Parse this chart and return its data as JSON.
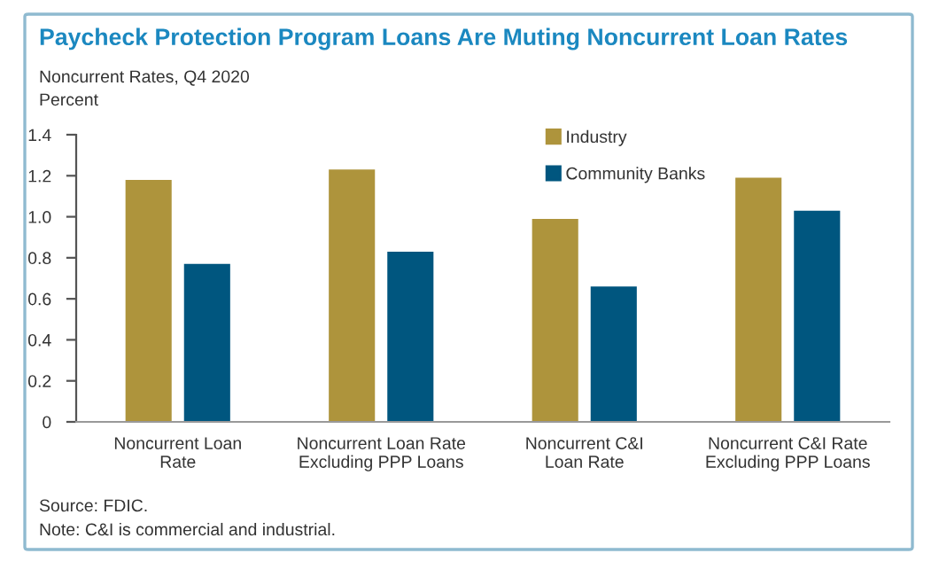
{
  "chart_data": {
    "type": "bar",
    "title": "Paycheck Protection Program Loans Are Muting Noncurrent Loan Rates",
    "subtitle": "Noncurrent Rates, Q4 2020",
    "ylabel": "Percent",
    "categories": [
      "Noncurrent Loan\nRate",
      "Noncurrent Loan Rate\nExcluding PPP Loans",
      "Noncurrent C&I\nLoan Rate",
      "Noncurrent C&I Rate\nExcluding PPP Loans"
    ],
    "series": [
      {
        "name": "Industry",
        "color": "#ae943c",
        "values": [
          1.18,
          1.23,
          0.99,
          1.19
        ]
      },
      {
        "name": "Community Banks",
        "color": "#00567f",
        "values": [
          0.77,
          0.83,
          0.66,
          1.03
        ]
      }
    ],
    "ylim": [
      0,
      1.4
    ],
    "yticks": [
      0,
      0.2,
      0.4,
      0.6,
      0.8,
      {
        "value": 1,
        "label": "1.0"
      },
      1.2,
      1.4
    ],
    "grid": false,
    "legend": "top right",
    "annotations": [
      "Source: FDIC.",
      "Note: C&I is commercial and industrial."
    ]
  }
}
